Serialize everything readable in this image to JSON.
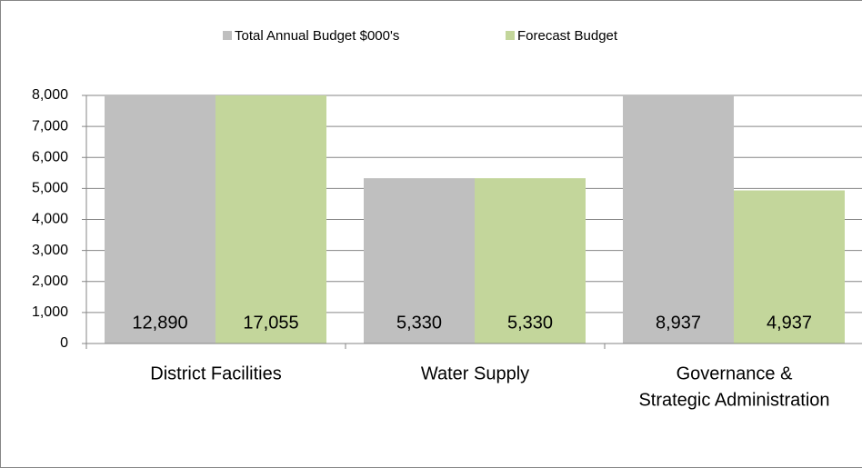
{
  "chart_data": {
    "type": "bar",
    "categories": [
      "District Facilities",
      "Water Supply",
      [
        "Governance &",
        "Strategic Administration"
      ]
    ],
    "series": [
      {
        "name": "Total Annual Budget $000's",
        "color": "#bfbfbf",
        "values": [
          12890,
          5330,
          8937
        ],
        "value_labels": [
          "12,890",
          "5,330",
          "8,937"
        ]
      },
      {
        "name": "Forecast Budget",
        "color": "#c3d69b",
        "values": [
          17055,
          5330,
          4937
        ],
        "value_labels": [
          "17,055",
          "5,330",
          "4,937"
        ]
      }
    ],
    "ylim": [
      0,
      8000
    ],
    "yticks": [
      0,
      {
        "value": 1000,
        "label": "1,000"
      },
      {
        "value": 2000,
        "label": "2,000"
      },
      {
        "value": 3000,
        "label": "3,000"
      },
      {
        "value": 4000,
        "label": "4,000"
      },
      {
        "value": 5000,
        "label": "5,000"
      },
      {
        "value": 6000,
        "label": "6,000"
      },
      {
        "value": 7000,
        "label": "7,000"
      },
      {
        "value": 8000,
        "label": "8,000"
      }
    ],
    "grid": true,
    "legend": "top"
  }
}
